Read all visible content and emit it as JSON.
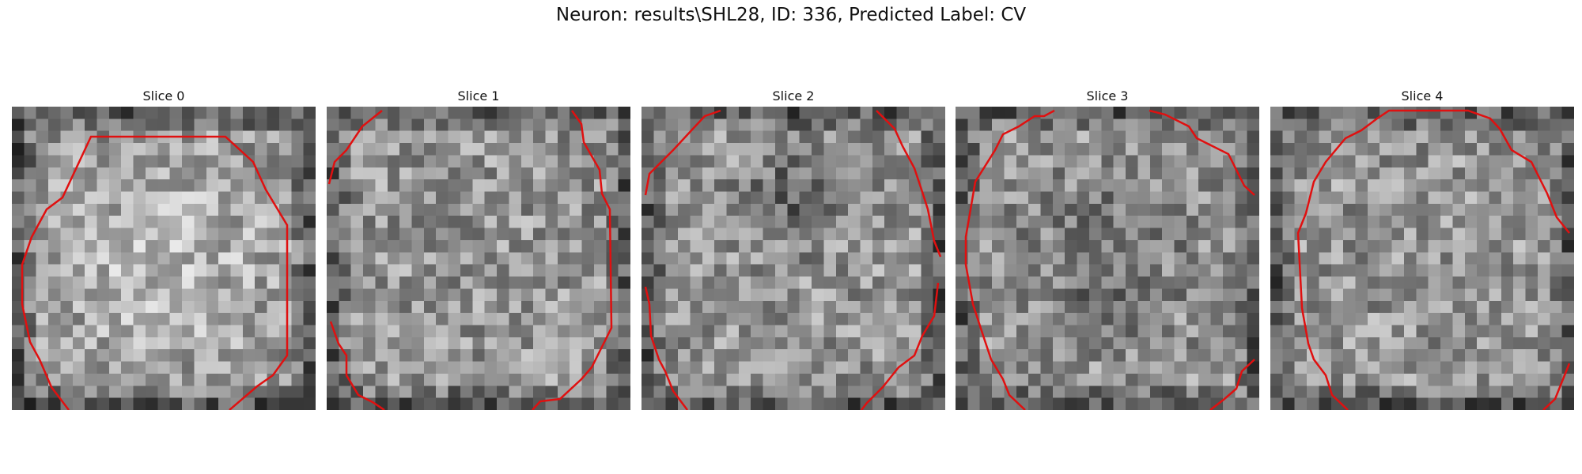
{
  "figure": {
    "title": "Neuron: results\\SHL28, ID: 336, Predicted Label: CV",
    "contour_color": "#e01010"
  },
  "slices": [
    {
      "title": "Slice 0"
    },
    {
      "title": "Slice 1"
    },
    {
      "title": "Slice 2"
    },
    {
      "title": "Slice 3"
    },
    {
      "title": "Slice 4"
    }
  ]
}
